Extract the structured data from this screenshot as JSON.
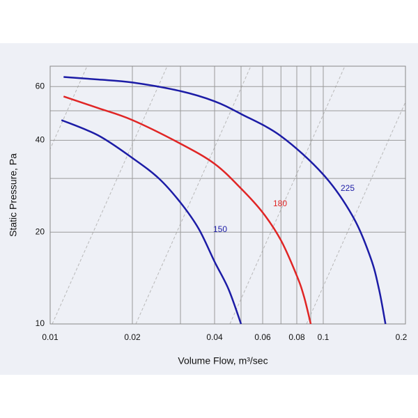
{
  "chart_data": {
    "type": "line",
    "x_label": "Volume Flow, m³/sec",
    "y_label": "Static Pressure, Pa",
    "log_x": true,
    "log_y": true,
    "grid": true,
    "xlim": [
      0.01,
      0.2
    ],
    "ylim": [
      10,
      70
    ],
    "xticks": [
      0.01,
      0.02,
      0.04,
      0.06,
      0.08,
      0.1,
      0.2
    ],
    "minor_xticks": [
      0.03,
      0.05,
      0.07,
      0.09
    ],
    "yticks": [
      10,
      20,
      40,
      60
    ],
    "minor_yticks": [
      30,
      50
    ],
    "series": [
      {
        "name": "150",
        "color": "#1c1ca6",
        "x": [
          0.011,
          0.015,
          0.02,
          0.025,
          0.03,
          0.035,
          0.04,
          0.045,
          0.05
        ],
        "values": [
          46.6,
          41.5,
          35,
          30,
          25,
          20.5,
          16,
          13,
          10
        ]
      },
      {
        "name": "180",
        "color": "#e02525",
        "x": [
          0.0112,
          0.015,
          0.02,
          0.03,
          0.04,
          0.05,
          0.06,
          0.07,
          0.08,
          0.085,
          0.09
        ],
        "values": [
          55.7,
          51,
          46.6,
          39,
          33.5,
          27.8,
          23.2,
          18.8,
          14.4,
          12.3,
          10
        ]
      },
      {
        "name": "225",
        "color": "#1c1ca6",
        "x": [
          0.0112,
          0.015,
          0.02,
          0.03,
          0.04,
          0.05,
          0.07,
          0.1,
          0.128,
          0.149,
          0.16,
          0.169
        ],
        "values": [
          64.5,
          63.3,
          61.9,
          58,
          53.7,
          48.8,
          41.3,
          30.9,
          22.6,
          16.5,
          13,
          10
        ]
      }
    ]
  }
}
